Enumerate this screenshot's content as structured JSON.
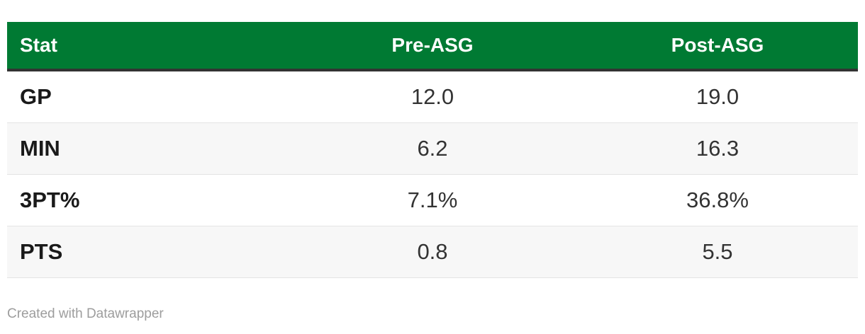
{
  "chart_data": {
    "type": "table",
    "columns": [
      "Stat",
      "Pre-ASG",
      "Post-ASG"
    ],
    "rows": [
      [
        "GP",
        "12.0",
        "19.0"
      ],
      [
        "MIN",
        "6.2",
        "16.3"
      ],
      [
        "3PT%",
        "7.1%",
        "36.8%"
      ],
      [
        "PTS",
        "0.8",
        "5.5"
      ]
    ],
    "layout_hints": {
      "header_background": true,
      "striped_rows": true,
      "value_columns_align": "center",
      "grid": "horizontal-row-separators"
    }
  },
  "footer": {
    "credit": "Created with Datawrapper"
  },
  "colors": {
    "header_bg": "#007a33",
    "header_text": "#ffffff",
    "header_rule": "#333333",
    "row_stripe": "#f7f7f7",
    "row_separator": "#e4e4e4",
    "label_text": "#1a1a1a",
    "value_text": "#333333",
    "credit_text": "#9d9d9d",
    "page_bg": "#ffffff"
  }
}
